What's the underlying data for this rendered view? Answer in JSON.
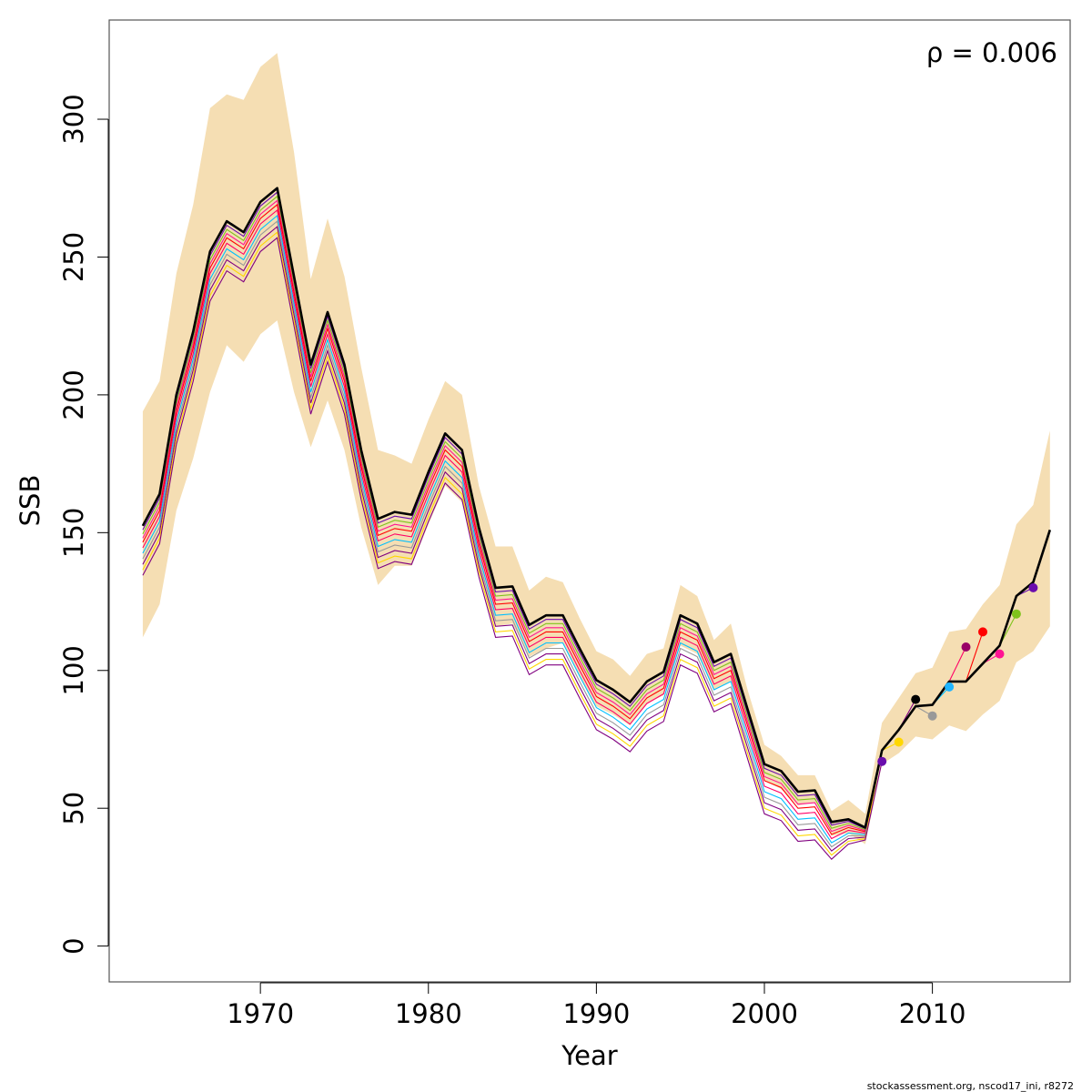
{
  "chart_data": {
    "type": "line",
    "xlabel": "Year",
    "ylabel": "SSB",
    "xlim": [
      1961,
      2018.2
    ],
    "ylim": [
      -13,
      336
    ],
    "x_ticks": [
      1970,
      1980,
      1990,
      2000,
      2010
    ],
    "y_ticks": [
      0,
      50,
      100,
      150,
      200,
      250,
      300
    ],
    "annotation": "ρ = 0.006",
    "credit": "stockassessment.org, nscod17_ini, r8272",
    "band_color": "#f5deb3",
    "band": {
      "x": [
        1963,
        1964,
        1965,
        1966,
        1967,
        1968,
        1969,
        1970,
        1971,
        1972,
        1973,
        1974,
        1975,
        1976,
        1977,
        1978,
        1979,
        1980,
        1981,
        1982,
        1983,
        1984,
        1985,
        1986,
        1987,
        1988,
        1989,
        1990,
        1991,
        1992,
        1993,
        1994,
        1995,
        1996,
        1997,
        1998,
        1999,
        2000,
        2001,
        2002,
        2003,
        2004,
        2005,
        2006,
        2007,
        2008,
        2009,
        2010,
        2011,
        2012,
        2013,
        2014,
        2015,
        2016,
        2017
      ],
      "lower": [
        112,
        124,
        158,
        177,
        201,
        218,
        212,
        222,
        227,
        201,
        181,
        198,
        180,
        152,
        131,
        138,
        138,
        153,
        167,
        161,
        136,
        116,
        117,
        105,
        108,
        110,
        98,
        87,
        84,
        80,
        88,
        91,
        109,
        106,
        93,
        96,
        82,
        60,
        57,
        51,
        52,
        40,
        41,
        37,
        66,
        70,
        76,
        75,
        80,
        78,
        84,
        89,
        103,
        107,
        116
      ],
      "upper": [
        194,
        205,
        244,
        269,
        304,
        309,
        307,
        319,
        324,
        288,
        242,
        264,
        243,
        210,
        180,
        178,
        175,
        191,
        205,
        200,
        167,
        145,
        145,
        129,
        134,
        132,
        119,
        107,
        104,
        98,
        106,
        108,
        131,
        127,
        111,
        117,
        93,
        73,
        69,
        62,
        62,
        49,
        53,
        48,
        81,
        90,
        99,
        101,
        114,
        115,
        124,
        131,
        153,
        160,
        187
      ]
    },
    "main_color": "#000000",
    "main_series": {
      "x": [
        1963,
        1964,
        1965,
        1966,
        1967,
        1968,
        1969,
        1970,
        1971,
        1972,
        1973,
        1974,
        1975,
        1976,
        1977,
        1978,
        1979,
        1980,
        1981,
        1982,
        1983,
        1984,
        1985,
        1986,
        1987,
        1988,
        1989,
        1990,
        1991,
        1992,
        1993,
        1994,
        1995,
        1996,
        1997,
        1998,
        1999,
        2000,
        2001,
        2002,
        2003,
        2004,
        2005,
        2006,
        2007,
        2008,
        2009,
        2010,
        2011,
        2012,
        2013,
        2014,
        2015,
        2016,
        2017
      ],
      "y": [
        152.5,
        164,
        200,
        223,
        252,
        263,
        259,
        270,
        275,
        243,
        211,
        230,
        211,
        180,
        155,
        157.5,
        156.5,
        172,
        186,
        180,
        152,
        130,
        130.5,
        116.5,
        120,
        120,
        108,
        96.5,
        93,
        88.5,
        96,
        99.5,
        120,
        117,
        103,
        106,
        86,
        66,
        63.5,
        56,
        56.5,
        45,
        46,
        43,
        71,
        78.5,
        87,
        87.5,
        96,
        96,
        102.5,
        109,
        127,
        132,
        151
      ]
    },
    "peel_colors": [
      "#e41a1c",
      "#ff0066",
      "#ff8c00",
      "#ff6666",
      "#2ca02c",
      "#87ceeb",
      "#ffd700",
      "#800080",
      "#999999",
      "#ff0000",
      "#00bfff",
      "#ff1493",
      "#7fc31c",
      "#6a0dad"
    ],
    "peels": [
      {
        "offset": -1.5,
        "end_year": 2016,
        "end_value": 130,
        "color_index": 13
      },
      {
        "offset": -3.0,
        "end_year": 2015,
        "end_value": 120.5,
        "color_index": 12
      },
      {
        "offset": -4.5,
        "end_year": 2014,
        "end_value": 106,
        "color_index": 11
      },
      {
        "offset": -6.0,
        "end_year": 2013,
        "end_value": 114,
        "color_index": 9
      },
      {
        "offset": -8.0,
        "end_year": 2012,
        "end_value": 108.5,
        "color_index": 1
      },
      {
        "offset": -10.0,
        "end_year": 2011,
        "end_value": 94,
        "color_index": 10
      },
      {
        "offset": -12.0,
        "end_year": 2010,
        "end_value": 83.5,
        "color_index": 8
      },
      {
        "offset": -14.0,
        "end_year": 2009,
        "end_value": 89.5,
        "color_index": 7
      },
      {
        "offset": -16.0,
        "end_year": 2008,
        "end_value": 74,
        "color_index": 6
      },
      {
        "offset": -18.0,
        "end_year": 2007,
        "end_value": 67,
        "color_index": 7
      }
    ],
    "peel_point_colors": {
      "2016": "#6a0dad",
      "2015": "#7fc31c",
      "2014": "#ff1493",
      "2013": "#ff0000",
      "2012": "#990066",
      "2011": "#1eb4ff",
      "2010": "#999999",
      "2009": "#000000",
      "2008": "#ffd700",
      "2007": "#6a0dad"
    },
    "grid": false,
    "legend": "none"
  }
}
